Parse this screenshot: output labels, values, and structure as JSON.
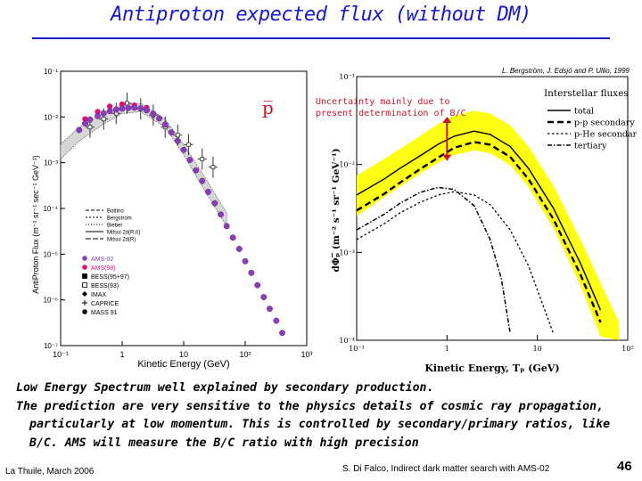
{
  "slide": {
    "title": "Antiproton expected flux (without DM)",
    "bullets": [
      "Low Energy Spectrum well explained by secondary production.",
      "The prediction are very sensitive to the physics details of cosmic ray propagation, particularly at low momentum. This is controlled by secondary/primary ratios, like B/C. AMS will measure the B/C ratio with high precision"
    ],
    "footer_left": "La Thuile, March 2006",
    "footer_center": "S. Di Falco, Indirect dark matter search with AMS-02",
    "page_number": "46"
  },
  "chart_data": [
    {
      "type": "scatter",
      "xlabel": "Kinetic Energy (GeV)",
      "ylabel": "AntiProton Flux (m⁻² sr⁻¹ sec⁻¹ GeV⁻¹)",
      "x_ticks": [
        "10⁻¹",
        "1",
        "10",
        "10²",
        "10³"
      ],
      "y_ticks": [
        "10⁻¹",
        "10⁻²",
        "10⁻³",
        "10⁻⁴",
        "10⁻⁵",
        "10⁻⁶",
        "10⁻⁷"
      ],
      "xlim": [
        0.1,
        1000
      ],
      "ylim": [
        1e-07,
        0.1
      ],
      "label": "p̅",
      "legend_curves": [
        "Bottino",
        "Bergstrom",
        "Bieber",
        "Mitsui 2d(R,0)",
        "Mitsui 2d(R)"
      ],
      "legend_points": [
        "AMS-02",
        "AMS(98)",
        "BESS(95+97)",
        "BESS(93)",
        "IMAX",
        "CAPRICE",
        "MASS 91"
      ],
      "ams02_points": {
        "x": [
          0.2,
          0.25,
          0.3,
          0.4,
          0.5,
          0.63,
          0.8,
          1.0,
          1.26,
          1.58,
          2.0,
          2.5,
          3.2,
          4.0,
          5.0,
          6.3,
          8.0,
          10,
          12.6,
          15.8,
          20,
          25,
          32,
          40,
          50,
          63,
          80,
          100,
          126,
          158,
          200,
          250,
          320,
          400
        ],
        "y": [
          0.0052,
          0.0072,
          0.0088,
          0.0105,
          0.012,
          0.0135,
          0.0145,
          0.0152,
          0.0158,
          0.016,
          0.0155,
          0.014,
          0.0118,
          0.0093,
          0.0068,
          0.0046,
          0.003,
          0.0019,
          0.00115,
          0.00068,
          0.0004,
          0.00023,
          0.00013,
          7.4e-05,
          4.1e-05,
          2.3e-05,
          1.3e-05,
          7e-06,
          3.9e-06,
          2.1e-06,
          1.15e-06,
          6.4e-07,
          3.5e-07,
          1.9e-07
        ]
      },
      "ams98_points": {
        "x": [
          0.25,
          0.4,
          0.63,
          1.0,
          1.58,
          2.5
        ],
        "y": [
          0.009,
          0.013,
          0.017,
          0.019,
          0.018,
          0.016
        ]
      },
      "other_points": {
        "x": [
          0.3,
          0.5,
          0.8,
          1.2,
          2.0,
          3.2,
          5.0,
          8.0,
          12,
          20,
          30
        ],
        "y": [
          0.006,
          0.009,
          0.012,
          0.02,
          0.015,
          0.011,
          0.006,
          0.004,
          0.0025,
          0.0012,
          0.0008
        ]
      },
      "model_band": {
        "x": [
          0.1,
          0.2,
          0.5,
          1.0,
          2.0,
          5.0,
          10,
          20,
          50
        ],
        "upper": [
          0.0025,
          0.006,
          0.012,
          0.019,
          0.02,
          0.009,
          0.0025,
          0.0006,
          8e-05
        ],
        "lower": [
          0.0012,
          0.003,
          0.007,
          0.012,
          0.013,
          0.006,
          0.0015,
          0.0003,
          4e-05
        ]
      }
    },
    {
      "type": "line",
      "citation": "L. Bergström, J. Edsjö and P. Ullio, 1999",
      "annotation": "Uncertainty mainly due to present determination of B/C",
      "xlabel": "Kinetic Energy, Tₚ (GeV)",
      "ylabel": "dΦₚ̅ (m⁻² s⁻¹ sr⁻¹ GeV⁻¹)",
      "x_ticks": [
        "10⁻¹",
        "1",
        "10",
        "10²"
      ],
      "y_ticks": [
        "10⁻¹",
        "10⁻²",
        "10⁻³",
        "10⁻⁴"
      ],
      "xlim": [
        0.1,
        100
      ],
      "ylim": [
        0.0001,
        0.1
      ],
      "legend_title": "Interstellar fluxes",
      "series": [
        {
          "name": "total",
          "x": [
            0.1,
            0.2,
            0.3,
            0.5,
            0.8,
            1.2,
            2.0,
            3.0,
            5.0,
            8.0,
            15,
            30,
            50
          ],
          "y": [
            0.0045,
            0.0068,
            0.009,
            0.0125,
            0.017,
            0.021,
            0.024,
            0.022,
            0.016,
            0.009,
            0.0032,
            0.00075,
            0.00022
          ]
        },
        {
          "name": "p-p secondary",
          "x": [
            0.1,
            0.2,
            0.3,
            0.5,
            0.8,
            1.2,
            2.0,
            3.0,
            5.0,
            8.0,
            15,
            30,
            50
          ],
          "y": [
            0.003,
            0.0046,
            0.0062,
            0.0088,
            0.012,
            0.0155,
            0.018,
            0.0168,
            0.0122,
            0.0068,
            0.0024,
            0.00056,
            0.00016
          ]
        },
        {
          "name": "p-He secondary",
          "x": [
            0.1,
            0.2,
            0.3,
            0.5,
            0.8,
            1.2,
            2.0,
            3.0,
            5.0,
            8.0,
            15
          ],
          "y": [
            0.0014,
            0.0021,
            0.0028,
            0.0037,
            0.0045,
            0.0049,
            0.0045,
            0.0035,
            0.0018,
            0.0007,
            0.00012
          ]
        },
        {
          "name": "tertiary",
          "x": [
            0.1,
            0.2,
            0.3,
            0.5,
            0.8,
            1.2,
            2.0,
            3.0,
            4.0,
            5.0
          ],
          "y": [
            0.0018,
            0.0027,
            0.0036,
            0.0048,
            0.0055,
            0.0052,
            0.0034,
            0.0014,
            0.0005,
            0.00012
          ]
        }
      ],
      "uncertainty_band": {
        "x": [
          0.1,
          0.2,
          0.3,
          0.5,
          0.8,
          1.2,
          2.0,
          3.0,
          5.0,
          8.0,
          15,
          30,
          50,
          80
        ],
        "upper": [
          0.0075,
          0.0115,
          0.015,
          0.021,
          0.029,
          0.036,
          0.041,
          0.038,
          0.028,
          0.016,
          0.0058,
          0.0014,
          0.00045,
          0.00016
        ],
        "lower": [
          0.0026,
          0.0042,
          0.0056,
          0.0078,
          0.0105,
          0.0128,
          0.0145,
          0.0134,
          0.0098,
          0.0055,
          0.0019,
          0.00042,
          0.00011,
          0.0001
        ]
      },
      "arrow": {
        "x": 1.0,
        "y_from": 0.035,
        "y_to": 0.011
      }
    }
  ]
}
